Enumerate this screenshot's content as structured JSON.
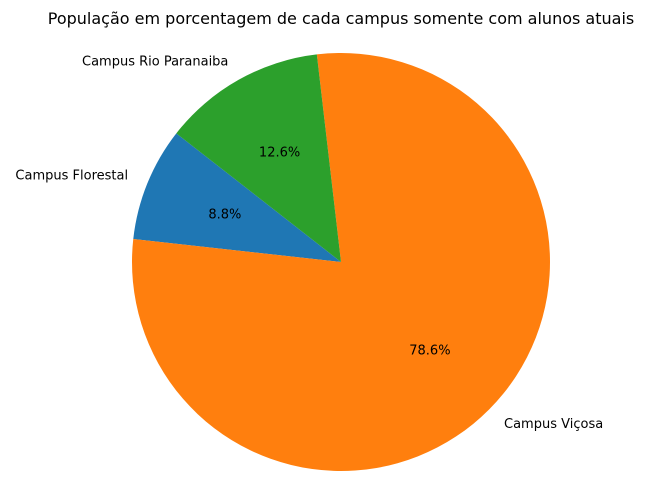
{
  "chart_data": {
    "type": "pie",
    "title": "População em porcentagem de cada campus somente com alunos atuais",
    "slices": [
      {
        "label": "Campus Florestal",
        "value": 8.8,
        "pct_label": "8.8%",
        "color": "#1f77b4"
      },
      {
        "label": "Campus Viçosa",
        "value": 78.6,
        "pct_label": "78.6%",
        "color": "#ff7f0e"
      },
      {
        "label": "Campus Rio Paranaiba",
        "value": 12.6,
        "pct_label": "12.6%",
        "color": "#2ca02c"
      }
    ],
    "start_angle_deg": 142,
    "direction": "counterclockwise",
    "legend": "none"
  }
}
